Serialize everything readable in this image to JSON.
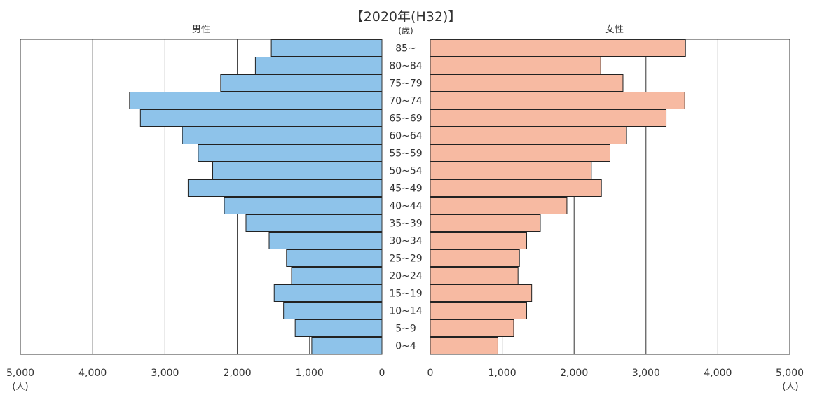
{
  "chart_data": {
    "type": "bar",
    "title": "【2020年(H32)】",
    "unit_age": "(歳)",
    "unit_people": "(人)",
    "side_labels": {
      "male": "男性",
      "female": "女性"
    },
    "categories": [
      "85~",
      "80~84",
      "75~79",
      "70~74",
      "65~69",
      "60~64",
      "55~59",
      "50~54",
      "45~49",
      "40~44",
      "35~39",
      "30~34",
      "25~29",
      "20~24",
      "15~19",
      "10~14",
      "5~9",
      "0~4"
    ],
    "series": [
      {
        "name": "男性",
        "color": "#8ec3ea",
        "values": [
          1530,
          1750,
          2230,
          3490,
          3340,
          2760,
          2540,
          2340,
          2680,
          2180,
          1880,
          1560,
          1320,
          1250,
          1490,
          1360,
          1200,
          970
        ]
      },
      {
        "name": "女性",
        "color": "#f7baa2",
        "values": [
          3550,
          2370,
          2680,
          3540,
          3280,
          2730,
          2500,
          2240,
          2380,
          1900,
          1530,
          1340,
          1240,
          1220,
          1410,
          1340,
          1160,
          940
        ]
      }
    ],
    "x_ticks_left": [
      "5,000",
      "4,000",
      "3,000",
      "2,000",
      "1,000",
      "0"
    ],
    "x_ticks_right": [
      "0",
      "1,000",
      "2,000",
      "3,000",
      "4,000",
      "5,000"
    ],
    "xlim": [
      0,
      5000
    ],
    "grid": true
  }
}
